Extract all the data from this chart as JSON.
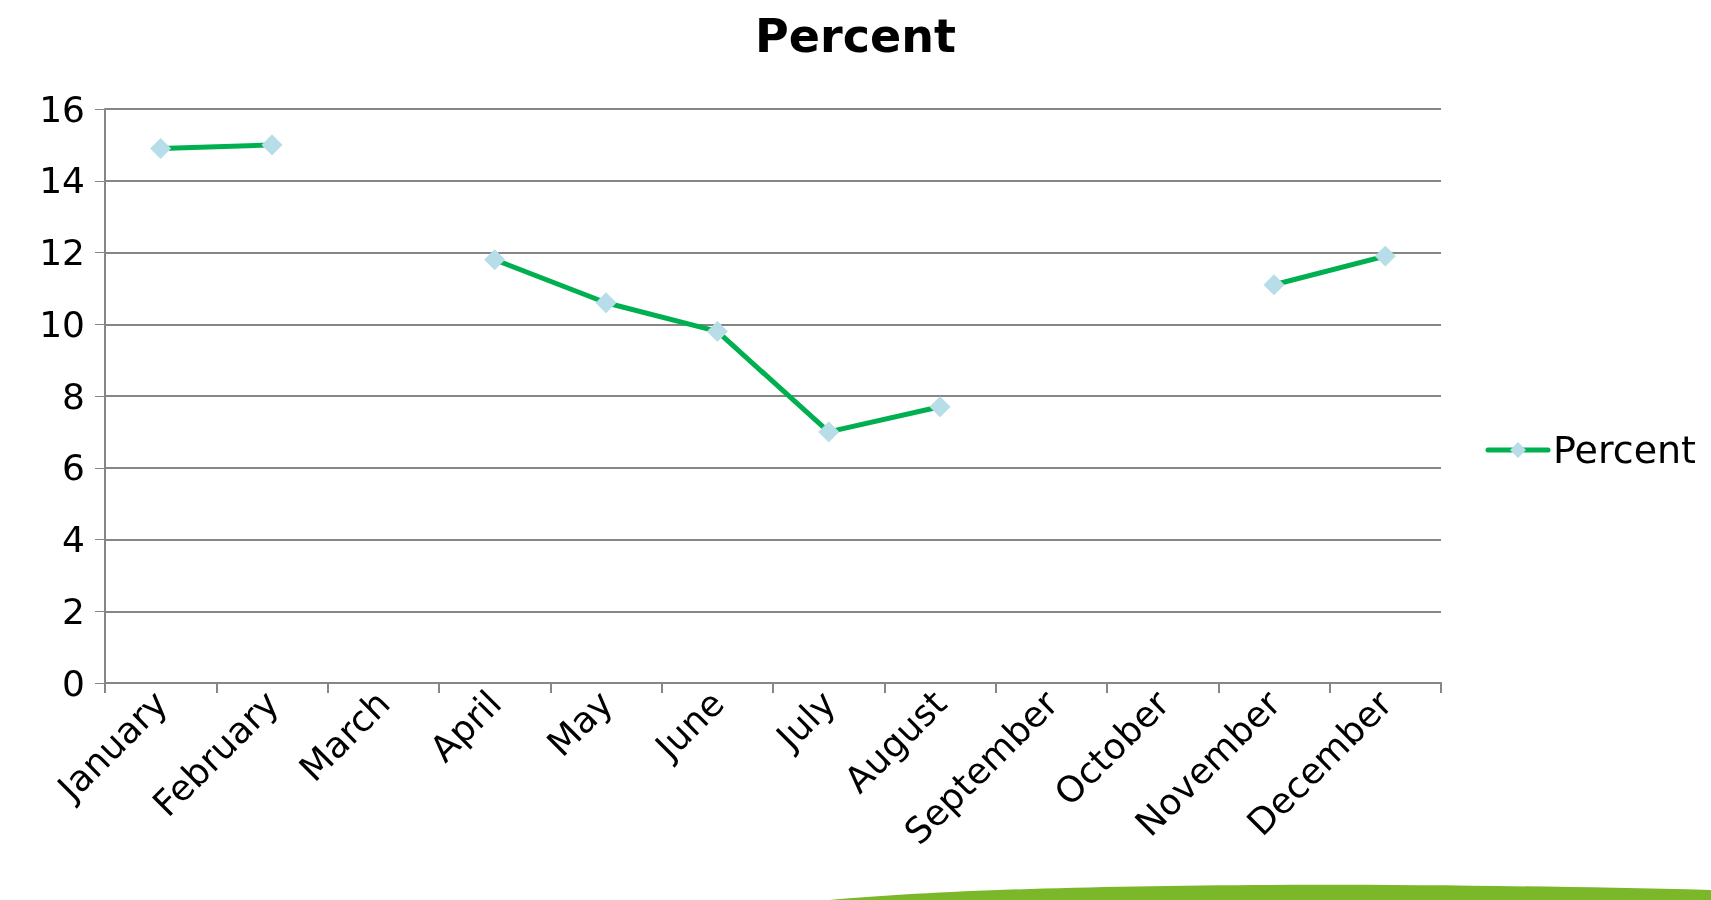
{
  "chart_data": {
    "type": "line",
    "title": "Percent",
    "categories": [
      "January",
      "February",
      "March",
      "April",
      "May",
      "June",
      "July",
      "August",
      "September",
      "October",
      "November",
      "December"
    ],
    "series": [
      {
        "name": "Percent",
        "color": "#00b050",
        "values": [
          14.9,
          15.0,
          null,
          11.8,
          10.6,
          9.8,
          7.0,
          7.7,
          null,
          null,
          11.1,
          11.9
        ]
      }
    ],
    "ylim": [
      0,
      16
    ],
    "yticks": [
      0,
      2,
      4,
      6,
      8,
      10,
      12,
      14,
      16
    ],
    "grid": "y",
    "legend": "right",
    "marker": "diamond"
  }
}
